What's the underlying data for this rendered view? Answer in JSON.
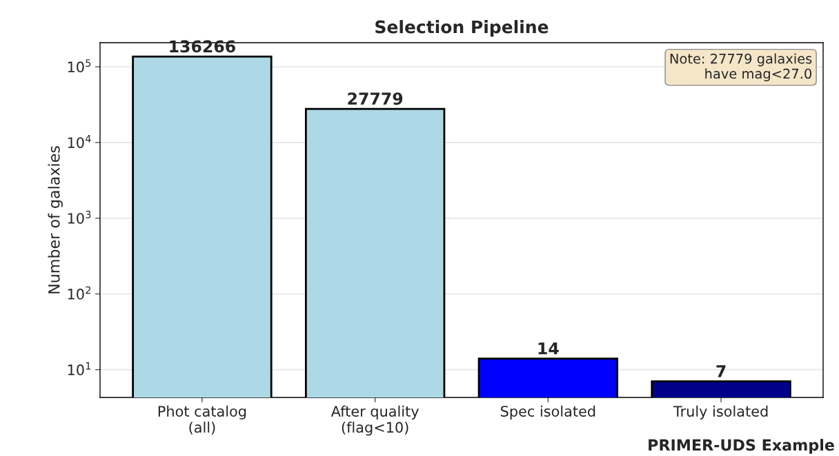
{
  "chart_data": {
    "type": "bar",
    "title": "Selection Pipeline",
    "ylabel": "Number of galaxies",
    "categories": [
      "Phot catalog\n(all)",
      "After quality\n(flag<10)",
      "Spec isolated",
      "Truly isolated"
    ],
    "values": [
      136266,
      27779,
      14,
      7
    ],
    "colors": [
      "#add8e6",
      "#add8e6",
      "#0000ff",
      "#00008b"
    ],
    "log": true,
    "ylim": [
      4.3,
      208000
    ],
    "yticks": [
      {
        "value": 10,
        "label": "10$^{1}$"
      },
      {
        "value": 100,
        "label": "10$^{2}$"
      },
      {
        "value": 1000,
        "label": "10$^{3}$"
      },
      {
        "value": 10000,
        "label": "10$^{4}$"
      },
      {
        "value": 100000,
        "label": "10$^{5}$"
      }
    ],
    "grid": "y",
    "data_labels": true,
    "annotations": [
      "Note: 27779 galaxies\nhave mag<27.0",
      "PRIMER-UDS Example"
    ]
  }
}
